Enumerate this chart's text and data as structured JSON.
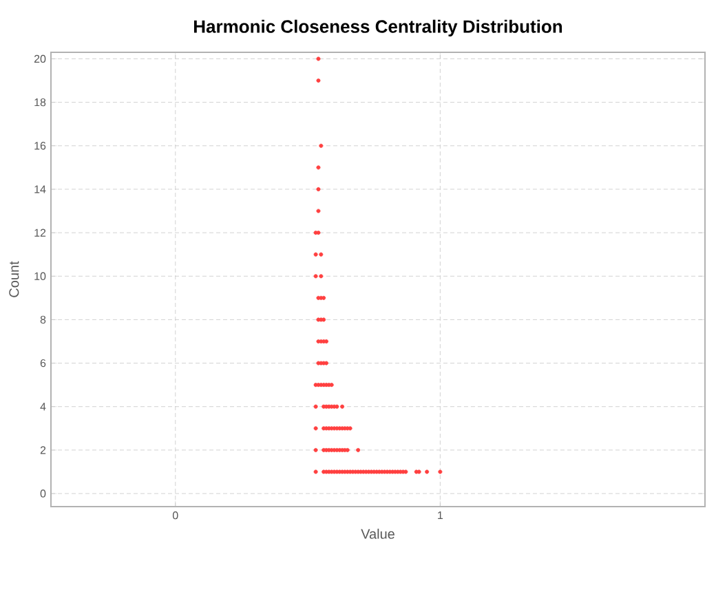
{
  "chart_data": {
    "type": "scatter",
    "title": "Harmonic Closeness Centrality Distribution",
    "xlabel": "Value",
    "ylabel": "Count",
    "xlim": [
      -0.47,
      2.0
    ],
    "ylim": [
      -0.6,
      20.3
    ],
    "xticks": [
      0,
      1
    ],
    "yticks": [
      0,
      2,
      4,
      6,
      8,
      10,
      12,
      14,
      16,
      18,
      20
    ],
    "grid": true,
    "series": [
      {
        "color": "#ff4040",
        "x": [
          0.53,
          0.56,
          0.57,
          0.58,
          0.59,
          0.6,
          0.61,
          0.62,
          0.63,
          0.64,
          0.65,
          0.66,
          0.67,
          0.68,
          0.69,
          0.7,
          0.71,
          0.72,
          0.73,
          0.74,
          0.75,
          0.76,
          0.77,
          0.78,
          0.79,
          0.8,
          0.81,
          0.82,
          0.83,
          0.84,
          0.85,
          0.86,
          0.87,
          0.91,
          0.92,
          0.95,
          1.0,
          0.53,
          0.56,
          0.57,
          0.58,
          0.59,
          0.6,
          0.61,
          0.62,
          0.63,
          0.64,
          0.65,
          0.69,
          0.53,
          0.56,
          0.57,
          0.58,
          0.59,
          0.6,
          0.61,
          0.62,
          0.63,
          0.64,
          0.65,
          0.66,
          0.53,
          0.56,
          0.57,
          0.58,
          0.59,
          0.6,
          0.61,
          0.63,
          0.53,
          0.54,
          0.55,
          0.56,
          0.57,
          0.58,
          0.59,
          0.54,
          0.55,
          0.56,
          0.57,
          0.54,
          0.55,
          0.56,
          0.57,
          0.54,
          0.55,
          0.56,
          0.54,
          0.55,
          0.56,
          0.53,
          0.55,
          0.53,
          0.55,
          0.53,
          0.54,
          0.54,
          0.54,
          0.54,
          0.55,
          0.54,
          0.54
        ],
        "values": [
          1,
          1,
          1,
          1,
          1,
          1,
          1,
          1,
          1,
          1,
          1,
          1,
          1,
          1,
          1,
          1,
          1,
          1,
          1,
          1,
          1,
          1,
          1,
          1,
          1,
          1,
          1,
          1,
          1,
          1,
          1,
          1,
          1,
          1,
          1,
          1,
          1,
          2,
          2,
          2,
          2,
          2,
          2,
          2,
          2,
          2,
          2,
          2,
          2,
          3,
          3,
          3,
          3,
          3,
          3,
          3,
          3,
          3,
          3,
          3,
          3,
          4,
          4,
          4,
          4,
          4,
          4,
          4,
          4,
          5,
          5,
          5,
          5,
          5,
          5,
          5,
          6,
          6,
          6,
          6,
          7,
          7,
          7,
          7,
          8,
          8,
          8,
          9,
          9,
          9,
          10,
          10,
          11,
          11,
          12,
          12,
          13,
          14,
          15,
          16,
          19,
          20
        ]
      }
    ]
  }
}
